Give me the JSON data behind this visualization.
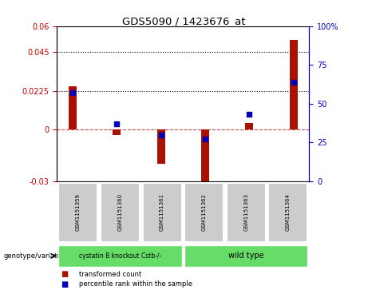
{
  "title": "GDS5090 / 1423676_at",
  "samples": [
    "GSM1151359",
    "GSM1151360",
    "GSM1151361",
    "GSM1151362",
    "GSM1151363",
    "GSM1151364"
  ],
  "transformed_count": [
    0.025,
    -0.003,
    -0.02,
    -0.034,
    0.004,
    0.052
  ],
  "percentile_rank_pct": [
    57,
    37,
    30,
    27,
    43,
    64
  ],
  "group1_label": "cystatin B knockout Cstb-/-",
  "group2_label": "wild type",
  "group1_color": "#66DD66",
  "group2_color": "#66DD66",
  "bar_color": "#AA1100",
  "dot_color": "#0000BB",
  "ylim_left": [
    -0.03,
    0.06
  ],
  "ylim_right": [
    0,
    100
  ],
  "yticks_left": [
    -0.03,
    0,
    0.0225,
    0.045,
    0.06
  ],
  "yticks_right": [
    0,
    25,
    50,
    75,
    100
  ],
  "hlines": [
    0.045,
    0.0225
  ],
  "legend_entries": [
    "transformed count",
    "percentile rank within the sample"
  ]
}
